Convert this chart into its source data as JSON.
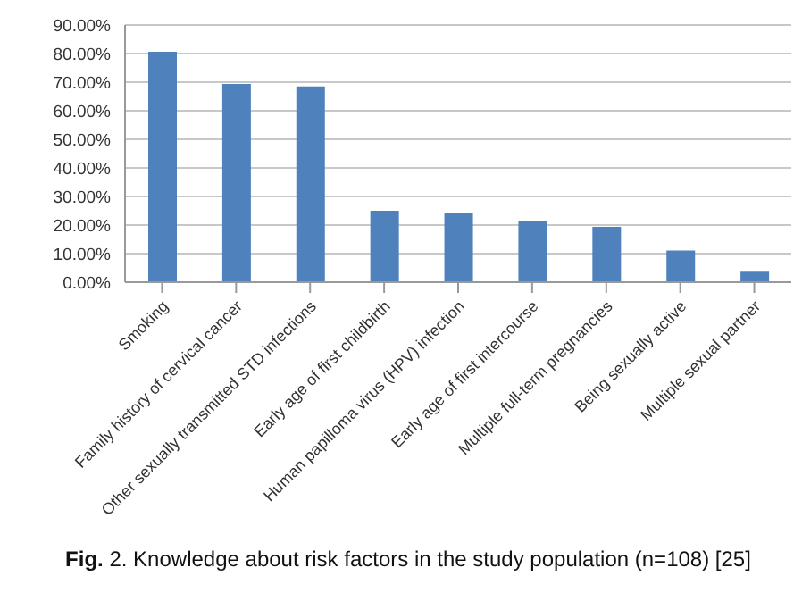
{
  "chart_data": {
    "type": "bar",
    "title": "Fig. 2. Knowledge about risk factors in the study population (n=108) [25]",
    "categories": [
      "Smoking",
      "Family history of cervical cancer",
      "Other sexually transmitted STD infections",
      "Early age of first childbirth",
      "Human papilloma virus (HPV) infection",
      "Early age of first intercourse",
      "Multiple full-term pregnancies",
      "Being sexually active",
      "Multiple sexual partner"
    ],
    "values": [
      80.6,
      69.4,
      68.5,
      25,
      24.1,
      21.3,
      19.4,
      11.1,
      3.7
    ],
    "color": "#4f81bd",
    "ylim": [
      0,
      90
    ],
    "yticks": [
      {
        "value": 0,
        "label": "0.00%"
      },
      {
        "value": 10,
        "label": "10.00%"
      },
      {
        "value": 20,
        "label": "20.00%"
      },
      {
        "value": 30,
        "label": "30.00%"
      },
      {
        "value": 40,
        "label": "40.00%"
      },
      {
        "value": 50,
        "label": "50.00%"
      },
      {
        "value": 60,
        "label": "60.00%"
      },
      {
        "value": 70,
        "label": "70.00%"
      },
      {
        "value": 80,
        "label": "80.00%"
      },
      {
        "value": 90,
        "label": "90.00%"
      }
    ],
    "grid": "y",
    "legend": false
  }
}
